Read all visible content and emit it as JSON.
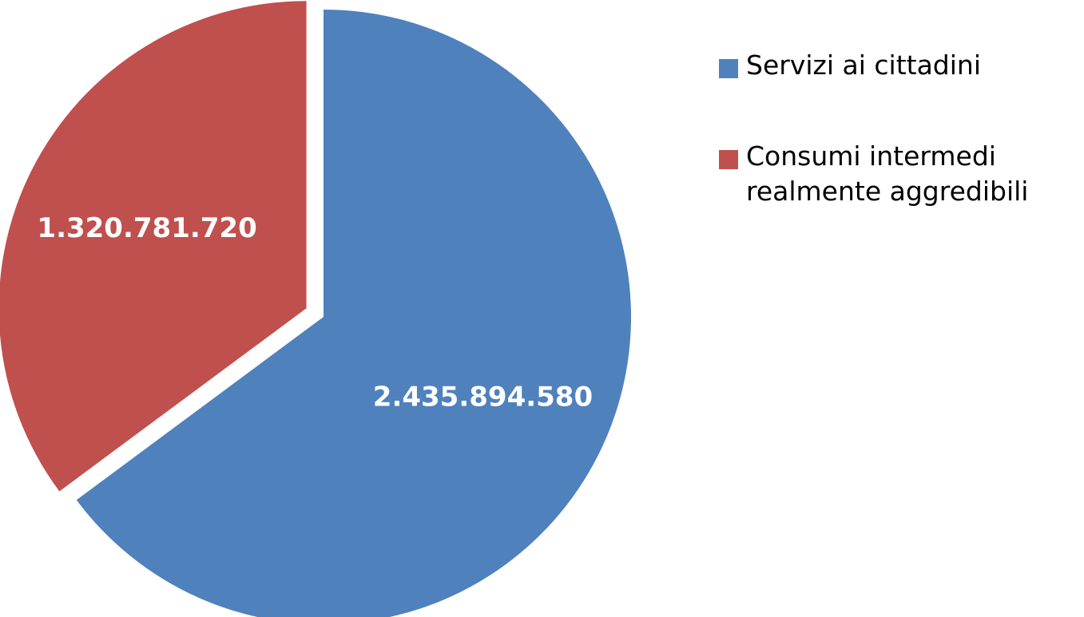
{
  "chart_data": {
    "type": "pie",
    "title": "",
    "categories": [
      "Servizi ai cittadini",
      "Consumi intermedi realmente aggredibili"
    ],
    "values": [
      2435894580,
      1320781720
    ],
    "value_labels": [
      "2.435.894.580",
      "1.320.781.720"
    ],
    "colors": [
      "#4F81BD",
      "#C0504D"
    ],
    "exploded": [
      false,
      true
    ],
    "start_angle": "12 o'clock",
    "direction": "clockwise",
    "legend_position": "right"
  }
}
